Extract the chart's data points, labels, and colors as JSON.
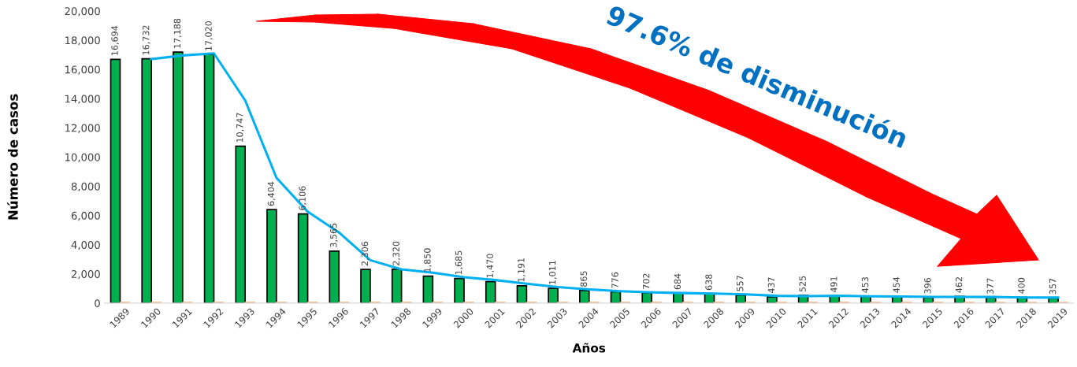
{
  "chart_data": {
    "type": "bar",
    "xlabel": "Años",
    "ylabel": "Número de casos",
    "categories": [
      "1989",
      "1990",
      "1991",
      "1992",
      "1993",
      "1994",
      "1995",
      "1996",
      "1997",
      "1998",
      "1999",
      "2000",
      "2001",
      "2002",
      "2003",
      "2004",
      "2005",
      "2006",
      "2007",
      "2008",
      "2009",
      "2010",
      "2011",
      "2012",
      "2013",
      "2014",
      "2015",
      "2016",
      "2017",
      "2018",
      "2019"
    ],
    "series": [
      {
        "color": "#00b050",
        "values": [
          16694,
          16732,
          17188,
          17020,
          10747,
          6404,
          6106,
          3565,
          2306,
          2320,
          1850,
          1685,
          1470,
          1191,
          1011,
          865,
          776,
          702,
          684,
          638,
          557,
          437,
          525,
          491,
          453,
          454,
          396,
          462,
          377,
          400,
          357
        ],
        "value_labels": [
          "16,694",
          "16,732",
          "17,188",
          "17,020",
          "10,747",
          "6,404",
          "6,106",
          "3,565",
          "2,306",
          "2,320",
          "1,850",
          "1,685",
          "1,470",
          "1,191",
          "1,011",
          "865",
          "776",
          "702",
          "684",
          "638",
          "557",
          "437",
          "525",
          "491",
          "453",
          "454",
          "396",
          "462",
          "377",
          "400",
          "357"
        ]
      },
      {
        "color": "#f4b183",
        "values": [
          50,
          50,
          50,
          50,
          50,
          50,
          50,
          50,
          50,
          50,
          50,
          50,
          50,
          50,
          50,
          50,
          50,
          50,
          50,
          50,
          50,
          50,
          50,
          50,
          50,
          50,
          50,
          50,
          50,
          50,
          50
        ]
      },
      {
        "type": "line",
        "color": "#00b0f0",
        "values": [
          null,
          16710,
          16960,
          17100,
          13880,
          8580,
          6260,
          4840,
          2940,
          2310,
          2090,
          1770,
          1580,
          1330,
          1100,
          940,
          820,
          740,
          690,
          660,
          600,
          500,
          480,
          510,
          470,
          450,
          430,
          430,
          420,
          390,
          380
        ]
      }
    ],
    "ylim": [
      0,
      20000
    ],
    "yticks": [
      {
        "value": 0,
        "label": "0"
      },
      {
        "value": 2000,
        "label": "2,000"
      },
      {
        "value": 4000,
        "label": "4,000"
      },
      {
        "value": 6000,
        "label": "6,000"
      },
      {
        "value": 8000,
        "label": "8,000"
      },
      {
        "value": 10000,
        "label": "10,000"
      },
      {
        "value": 12000,
        "label": "12,000"
      },
      {
        "value": 14000,
        "label": "14,000"
      },
      {
        "value": 16000,
        "label": "16,000"
      },
      {
        "value": 18000,
        "label": "18,000"
      },
      {
        "value": 20000,
        "label": "20,000"
      }
    ],
    "annotations": [
      "97.6% de disminución"
    ],
    "grid": false
  }
}
